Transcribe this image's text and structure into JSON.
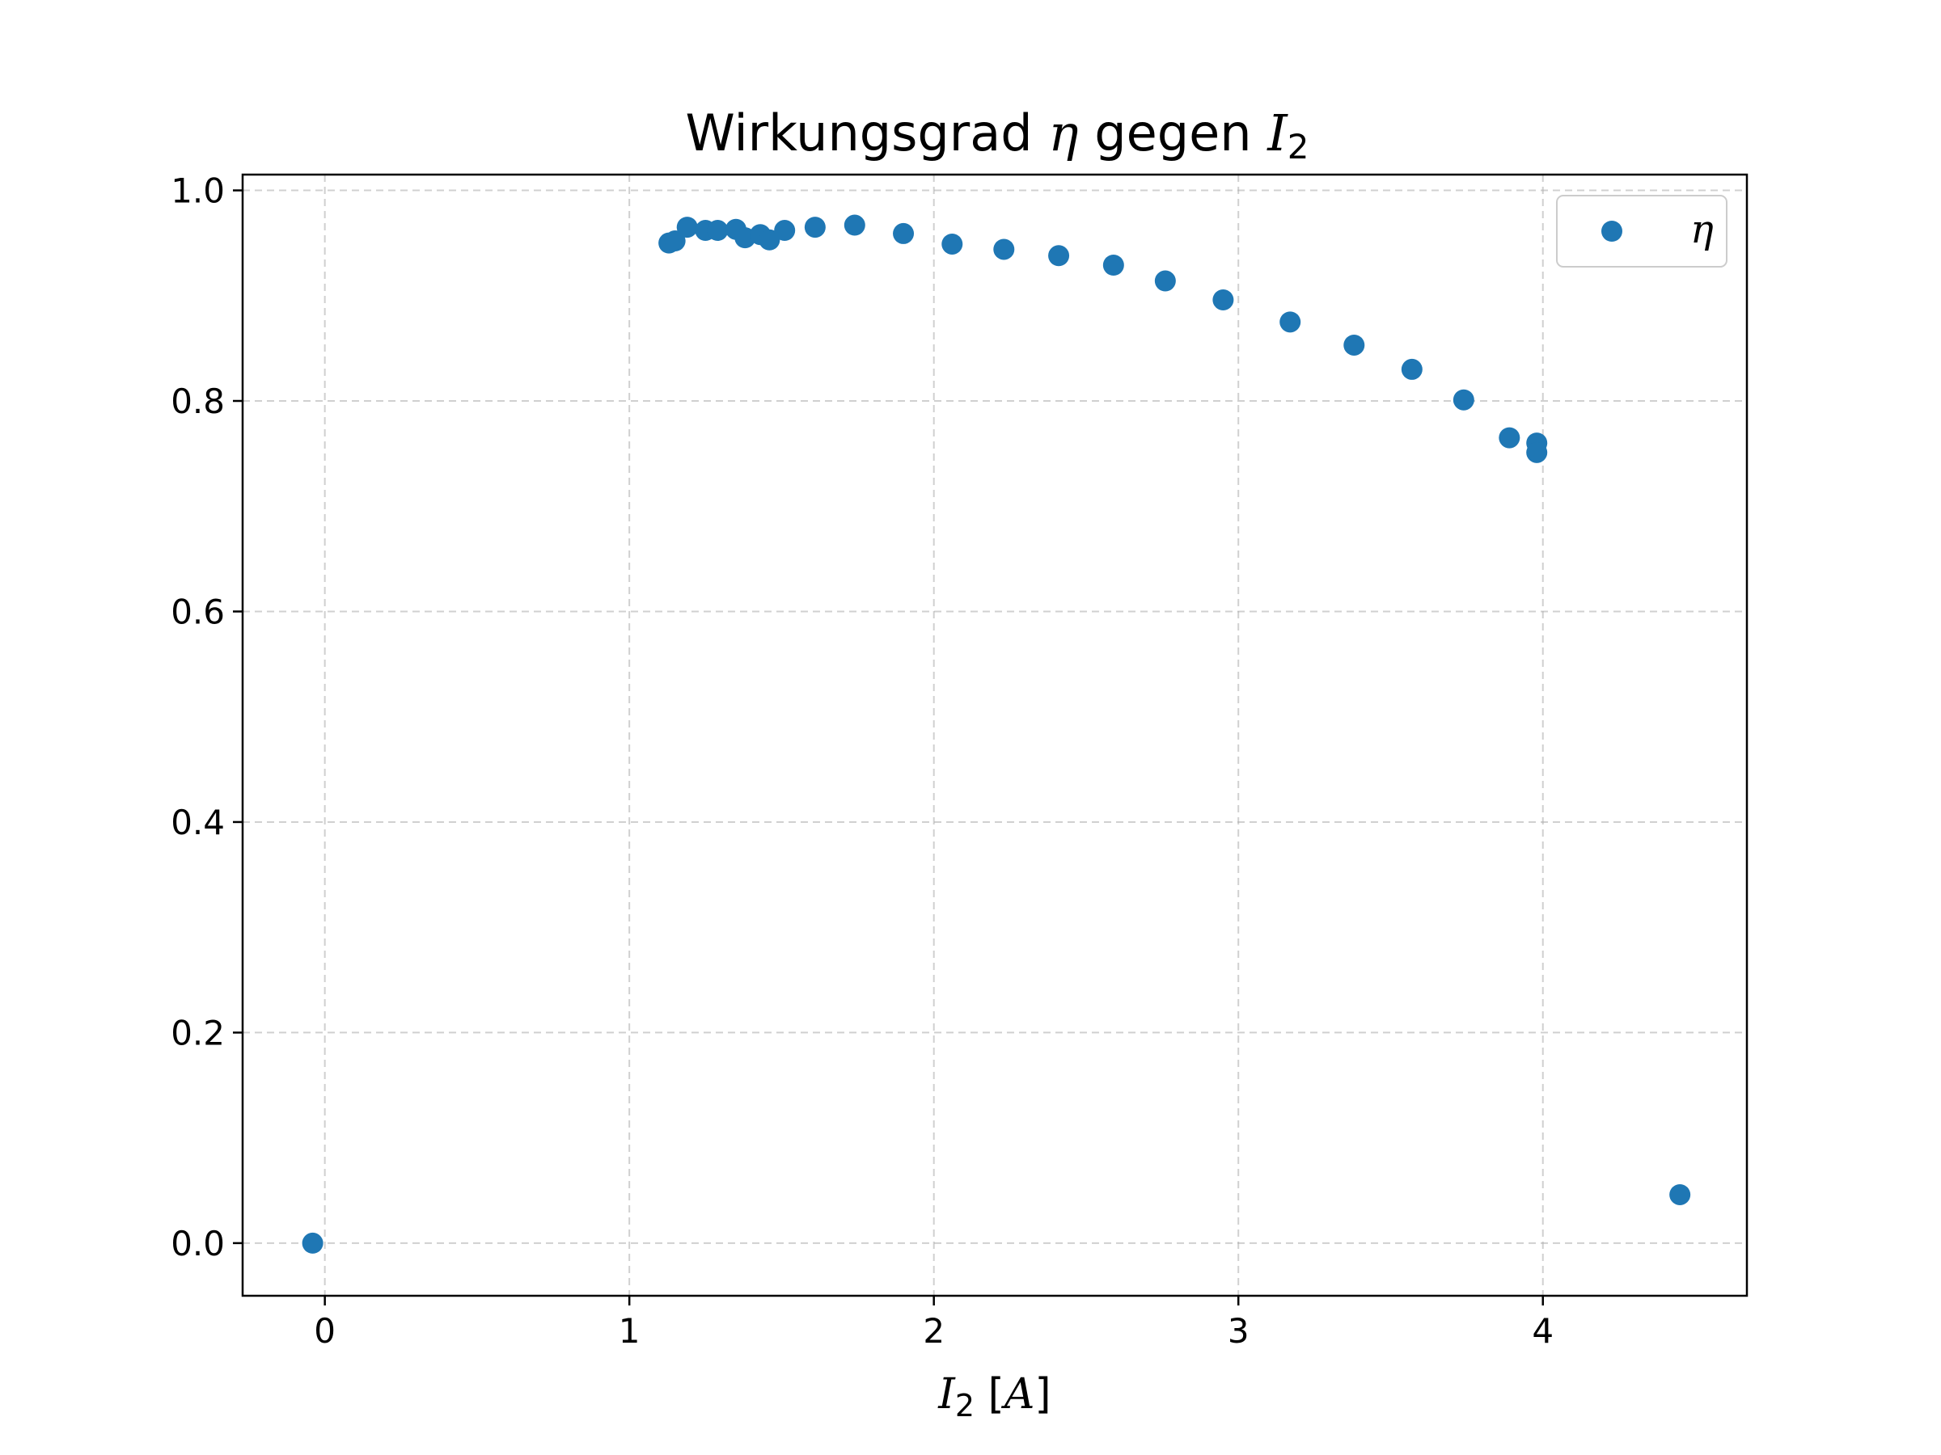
{
  "chart_data": {
    "type": "scatter",
    "title": {
      "prefix": "Wirkungsgrad",
      "symbol": "η",
      "middle": "gegen",
      "var": "I",
      "sub": "2"
    },
    "xlabel": {
      "var": "I",
      "sub": "2",
      "unit": "[A]"
    },
    "ylabel": "",
    "xlim": [
      -0.27,
      4.67
    ],
    "ylim": [
      -0.05,
      1.015
    ],
    "xticks": [
      0,
      1,
      2,
      3,
      4
    ],
    "xtick_labels": [
      "0",
      "1",
      "2",
      "3",
      "4"
    ],
    "yticks": [
      0.0,
      0.2,
      0.4,
      0.6,
      0.8,
      1.0
    ],
    "ytick_labels": [
      "0.0",
      "0.2",
      "0.4",
      "0.6",
      "0.8",
      "1.0"
    ],
    "grid": true,
    "legend_position": "top-right",
    "series": [
      {
        "name": "η",
        "color": "#1f77b4",
        "x": [
          -0.04,
          1.13,
          1.15,
          1.19,
          1.25,
          1.29,
          1.35,
          1.38,
          1.43,
          1.46,
          1.51,
          1.61,
          1.74,
          1.9,
          2.06,
          2.23,
          2.41,
          2.59,
          2.76,
          2.95,
          3.17,
          3.38,
          3.57,
          3.74,
          3.89,
          3.98,
          3.98,
          4.45
        ],
        "y": [
          0.0,
          0.95,
          0.952,
          0.965,
          0.962,
          0.962,
          0.963,
          0.955,
          0.958,
          0.953,
          0.962,
          0.965,
          0.967,
          0.959,
          0.949,
          0.944,
          0.938,
          0.929,
          0.914,
          0.896,
          0.875,
          0.853,
          0.83,
          0.801,
          0.765,
          0.76,
          0.751,
          0.046
        ]
      }
    ]
  }
}
